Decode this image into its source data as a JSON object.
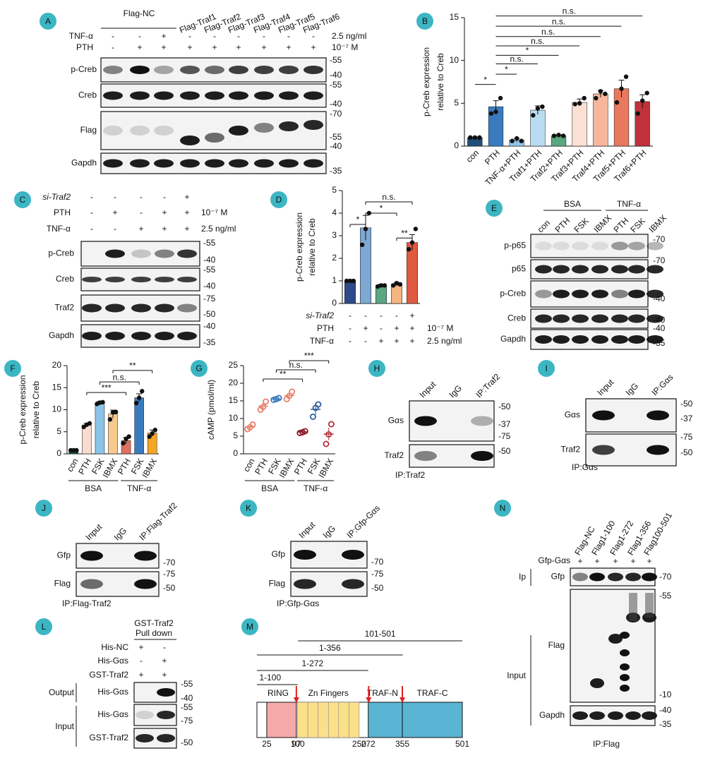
{
  "panel_labels": [
    "A",
    "B",
    "C",
    "D",
    "E",
    "F",
    "G",
    "H",
    "I",
    "J",
    "K",
    "L",
    "M",
    "N"
  ],
  "a": {
    "group": "Flag-NC",
    "lanes": [
      "Flag-Traf1",
      "Flag-Traf2",
      "Flag-Traf3",
      "Flag-Traf4",
      "Flag-Traf5",
      "Flag-Traf6"
    ],
    "rows": [
      {
        "name": "TNF-α",
        "marks": [
          "-",
          "-",
          "+",
          "-",
          "-",
          "-",
          "-",
          "-",
          "-"
        ],
        "dose": "2.5 ng/ml"
      },
      {
        "name": "PTH",
        "marks": [
          "-",
          "+",
          "+",
          "+",
          "+",
          "+",
          "+",
          "+",
          "+"
        ],
        "dose": "10⁻⁷ M"
      }
    ],
    "blots": [
      {
        "name": "p-Creb",
        "mw": [
          "-55",
          "-40"
        ]
      },
      {
        "name": "Creb",
        "mw": [
          "-55",
          "-40"
        ]
      },
      {
        "name": "Flag",
        "mw": [
          "-70",
          "-55",
          "-40"
        ]
      },
      {
        "name": "Gapdh",
        "mw": [
          "-35"
        ]
      }
    ]
  },
  "c": {
    "rows": [
      {
        "name": "si-Traf2",
        "marks": [
          "-",
          "-",
          "-",
          "-",
          "+"
        ]
      },
      {
        "name": "PTH",
        "marks": [
          "-",
          "+",
          "-",
          "+",
          "+"
        ],
        "dose": "10⁻⁷ M"
      },
      {
        "name": "TNF-α",
        "marks": [
          "-",
          "-",
          "+",
          "+",
          "+"
        ],
        "dose": "2.5 ng/ml"
      }
    ],
    "blots": [
      {
        "name": "p-Creb",
        "mw": [
          "-55",
          "-40"
        ]
      },
      {
        "name": "Creb",
        "mw": [
          "-55",
          "-40"
        ]
      },
      {
        "name": "Traf2",
        "mw": [
          "-75",
          "-50"
        ]
      },
      {
        "name": "Gapdh",
        "mw": [
          "-40",
          "-35"
        ]
      }
    ]
  },
  "e": {
    "groups": [
      "BSA",
      "TNF-α"
    ],
    "lanes": [
      "con",
      "PTH",
      "FSK",
      "IBMX",
      "PTH",
      "FSK",
      "IBMX"
    ],
    "blots": [
      {
        "name": "p-p65",
        "mw": [
          "-70"
        ]
      },
      {
        "name": "p65",
        "mw": [
          "-70"
        ]
      },
      {
        "name": "p-Creb",
        "mw": [
          "-40"
        ]
      },
      {
        "name": "Creb",
        "mw": [
          "-40"
        ]
      },
      {
        "name": "Gapdh",
        "mw": [
          "-40",
          "-35"
        ]
      }
    ]
  },
  "h": {
    "lanes": [
      "Input",
      "IgG",
      "IP:Traf2"
    ],
    "blots": [
      {
        "name": "Gαs",
        "mw": [
          "-50",
          "-37"
        ]
      },
      {
        "name": "Traf2",
        "mw": [
          "-75",
          "-50"
        ]
      }
    ],
    "caption": "IP:Traf2"
  },
  "i": {
    "lanes": [
      "Input",
      "IgG",
      "IP:Gαs"
    ],
    "blots": [
      {
        "name": "Gαs",
        "mw": [
          "-50",
          "-37"
        ]
      },
      {
        "name": "Traf2",
        "mw": [
          "-75",
          "-50"
        ]
      }
    ],
    "caption": "IP:Gαs"
  },
  "j": {
    "lanes": [
      "Input",
      "IgG",
      "IP:Flag-Traf2"
    ],
    "blots": [
      {
        "name": "Gfp",
        "mw": [
          "-70"
        ]
      },
      {
        "name": "Flag",
        "mw": [
          "-75",
          "-50"
        ]
      }
    ],
    "caption": "IP:Flag-Traf2"
  },
  "k": {
    "lanes": [
      "Input",
      "IgG",
      "IP:Gfp-Gαs"
    ],
    "blots": [
      {
        "name": "Gfp",
        "mw": [
          "-70"
        ]
      },
      {
        "name": "Flag",
        "mw": [
          "-75",
          "-50"
        ]
      }
    ],
    "caption": "IP:Gfp-Gαs"
  },
  "l": {
    "header": [
      "GST-Traf2",
      "Pull down"
    ],
    "rows": [
      {
        "name": "His-NC",
        "marks": [
          "+",
          "-"
        ]
      },
      {
        "name": "His-Gαs",
        "marks": [
          "-",
          "+"
        ]
      },
      {
        "name": "GST-Traf2",
        "marks": [
          "+",
          "+"
        ]
      }
    ],
    "sections": [
      "Output",
      "Input"
    ],
    "blots": [
      {
        "name": "His-Gαs",
        "mw": [
          "-55",
          "-40"
        ]
      },
      {
        "name": "His-Gαs",
        "mw": [
          "-55"
        ]
      },
      {
        "name": "GST-Traf2",
        "mw": [
          "-75",
          "-50"
        ]
      }
    ]
  },
  "m": {
    "constructs": [
      "101-501",
      "1-356",
      "1-272",
      "1-100"
    ],
    "domains": [
      "RING",
      "Zn Fingers",
      "TRAF-N",
      "TRAF-C"
    ],
    "positions": [
      25,
      97,
      100,
      250,
      272,
      355,
      501
    ]
  },
  "n": {
    "lanes": [
      "Flag-NC",
      "Flag1-100",
      "Flag1-272",
      "Flag1-356",
      "Flag100-501"
    ],
    "rows": [
      {
        "name": "Gfp-Gαs",
        "marks": [
          "+",
          "+",
          "+",
          "+",
          "+"
        ]
      }
    ],
    "sections": [
      "Ip",
      "Input"
    ],
    "blots": [
      {
        "name": "Gfp",
        "mw": [
          "-70"
        ]
      },
      {
        "name": "Flag",
        "mw": [
          "-55",
          "-10"
        ]
      },
      {
        "name": "Gapdh",
        "mw": [
          "-40",
          "-35"
        ]
      }
    ],
    "caption": "IP:Flag"
  },
  "chart_data": [
    {
      "type": "bar",
      "ylabel": [
        "p-Creb expression",
        "relative to Creb"
      ],
      "categories": [
        "con",
        "PTH",
        "TNF-α+PTH",
        "Traf1+PTH",
        "Traf2+PTH",
        "Traf3+PTH",
        "Traf4+PTH",
        "Traf5+PTH",
        "Traf6+PTH"
      ],
      "values": [
        1,
        4.6,
        0.7,
        4.2,
        1.2,
        5.1,
        6.1,
        6.7,
        5.2
      ],
      "errors": [
        0.05,
        0.7,
        0.2,
        0.5,
        0.1,
        0.4,
        0.4,
        1.0,
        0.8
      ],
      "points": [
        [
          1,
          1,
          1
        ],
        [
          3.8,
          4.0,
          5.6
        ],
        [
          0.6,
          0.9,
          0.6
        ],
        [
          3.6,
          4.4,
          4.6
        ],
        [
          1.2,
          1.3,
          1.2
        ],
        [
          4.9,
          5.0,
          5.6
        ],
        [
          5.6,
          6.4,
          6.1
        ],
        [
          5.1,
          6.7,
          8.1
        ],
        [
          3.8,
          5.3,
          6.2
        ]
      ],
      "colors": [
        "#1f4e79",
        "#3a7bbf",
        "#8ec6e8",
        "#b9dcf1",
        "#5aa680",
        "#fbe0d3",
        "#f6b79c",
        "#e8785e",
        "#c0313a"
      ],
      "significance": [
        "*",
        "*",
        "n.s.",
        "*",
        "n.s.",
        "n.s.",
        "n.s.",
        "n.s."
      ],
      "ylim": [
        0,
        15
      ],
      "yticks": [
        0,
        5,
        10,
        15
      ]
    },
    {
      "type": "bar",
      "ylabel": [
        "p-Creb expression",
        "relative to Creb"
      ],
      "categories": [
        null,
        null,
        null,
        null,
        null
      ],
      "conditions": [
        {
          "name": "si-Traf2",
          "marks": [
            "-",
            "-",
            "-",
            "-",
            "+"
          ]
        },
        {
          "name": "PTH",
          "marks": [
            "-",
            "+",
            "-",
            "+",
            "+"
          ],
          "dose": "10⁻⁷ M"
        },
        {
          "name": "TNF-α",
          "marks": [
            "-",
            "-",
            "+",
            "+",
            "+"
          ],
          "dose": "2.5 ng/ml"
        }
      ],
      "values": [
        1,
        3.35,
        0.8,
        0.85,
        2.7
      ],
      "errors": [
        0.02,
        0.55,
        0.05,
        0.08,
        0.35
      ],
      "points": [
        [
          1,
          1,
          1
        ],
        [
          2.6,
          3.3,
          4.0
        ],
        [
          0.75,
          0.8,
          0.8
        ],
        [
          0.8,
          0.9,
          0.85
        ],
        [
          2.4,
          2.7,
          3.3
        ]
      ],
      "colors": [
        "#2f4a8a",
        "#7ea8d2",
        "#5aa680",
        "#f6b480",
        "#e05a40"
      ],
      "significance": [
        "*",
        "*",
        "n.s.",
        "**"
      ],
      "ylim": [
        0,
        5
      ],
      "yticks": [
        0,
        1,
        2,
        3,
        4,
        5
      ]
    },
    {
      "type": "bar",
      "ylabel": [
        "p-Creb expression",
        "relative to Creb"
      ],
      "categories": [
        "con",
        "PTH",
        "FSK",
        "IBMX",
        "PTH",
        "FSK",
        "IBMX"
      ],
      "groups": [
        "BSA",
        "TNF-α"
      ],
      "values": [
        0.8,
        6.5,
        11.5,
        9,
        3,
        12.7,
        4.7
      ],
      "errors": [
        0.05,
        0.4,
        0.4,
        0.9,
        0.7,
        0.9,
        0.7
      ],
      "points": [
        [
          0.8,
          0.8,
          0.8
        ],
        [
          6.1,
          6.6,
          6.9
        ],
        [
          11.3,
          11.6,
          11.7
        ],
        [
          7.8,
          9.4,
          9.5
        ],
        [
          2.4,
          3.4,
          3.9
        ],
        [
          11.5,
          12.7,
          14.2
        ],
        [
          3.9,
          4.6,
          5.4
        ]
      ],
      "colors": [
        "#1f5c3b",
        "#fadbd0",
        "#8cc4e8",
        "#f6c98c",
        "#e07060",
        "#3a7bbf",
        "#f5a623"
      ],
      "significance": [
        "***",
        "n.s.",
        "**"
      ],
      "ylim": [
        0,
        20
      ],
      "yticks": [
        0,
        5,
        10,
        15,
        20
      ]
    },
    {
      "type": "dot",
      "ylabel": [
        "cAMP (pmol/ml)"
      ],
      "categories": [
        "con",
        "PTH",
        "FSK",
        "IBMX",
        "PTH",
        "FSK",
        "IBMX"
      ],
      "groups": [
        "BSA",
        "TNF-α"
      ],
      "values": [
        7.6,
        13.5,
        15.5,
        16.5,
        6.2,
        12.6,
        5.6
      ],
      "errors": [
        0.7,
        1.2,
        0.7,
        1.5,
        0.5,
        1.5,
        1.8
      ],
      "points": [
        [
          7,
          7.5,
          8.3
        ],
        [
          12.5,
          13.3,
          14.8
        ],
        [
          15.3,
          15.5,
          15.8
        ],
        [
          15.5,
          16.4,
          17.6
        ],
        [
          5.9,
          6.1,
          6.4
        ],
        [
          10.5,
          13,
          14
        ],
        [
          2.8,
          5.5,
          8.4
        ]
      ],
      "colors": [
        "#e8806a",
        "#e8806a",
        "#3a7bbf",
        "#e8806a",
        "#8b1a2b",
        "#2f5fa0",
        "#b5303c"
      ],
      "significance": [
        "**",
        "n.s.",
        "***"
      ],
      "ylim": [
        0,
        25
      ],
      "yticks": [
        0,
        5,
        10,
        15,
        20,
        25
      ]
    }
  ]
}
